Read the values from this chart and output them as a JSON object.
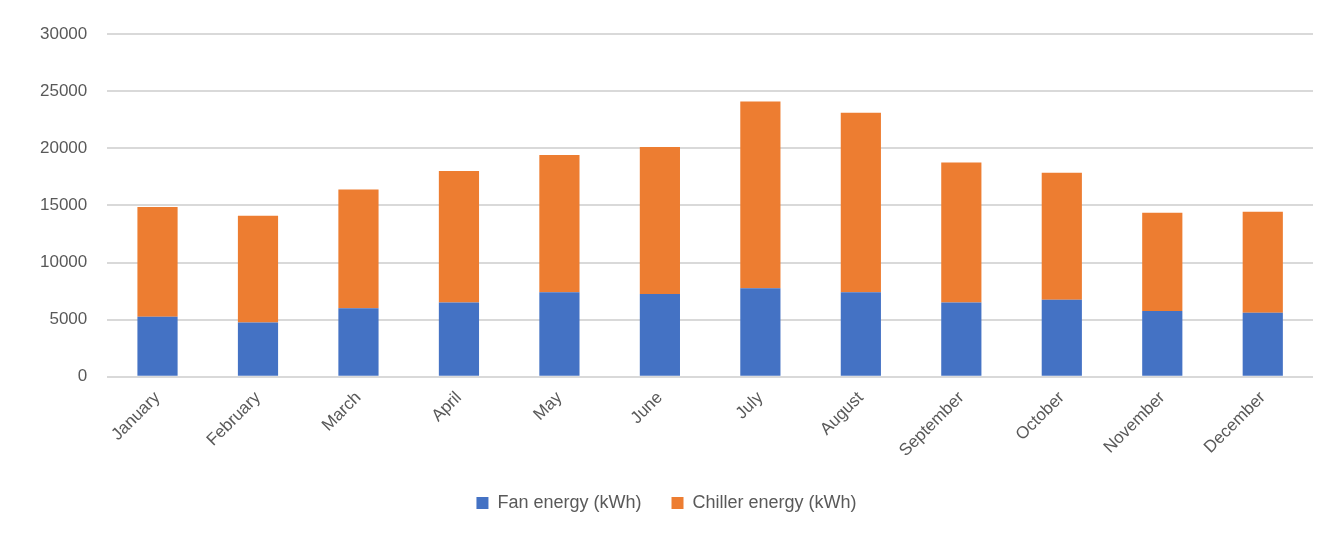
{
  "chart_data": {
    "type": "bar",
    "stacked": true,
    "categories": [
      "January",
      "February",
      "March",
      "April",
      "May",
      "June",
      "July",
      "August",
      "September",
      "October",
      "November",
      "December"
    ],
    "series": [
      {
        "name": "Fan energy (kWh)",
        "color": "#4472c4",
        "values": [
          5250,
          4750,
          6000,
          6500,
          7400,
          7250,
          7750,
          7400,
          6500,
          6750,
          5750,
          5600
        ]
      },
      {
        "name": "Chiller energy (kWh)",
        "color": "#ed7d31",
        "values": [
          9600,
          9350,
          10400,
          11500,
          12000,
          12850,
          16350,
          15700,
          12250,
          11100,
          8600,
          8850
        ]
      }
    ],
    "ylim": [
      0,
      30000
    ],
    "yticks": [
      0,
      5000,
      10000,
      15000,
      20000,
      25000,
      30000
    ],
    "grid": "y",
    "legend": "bottom"
  }
}
